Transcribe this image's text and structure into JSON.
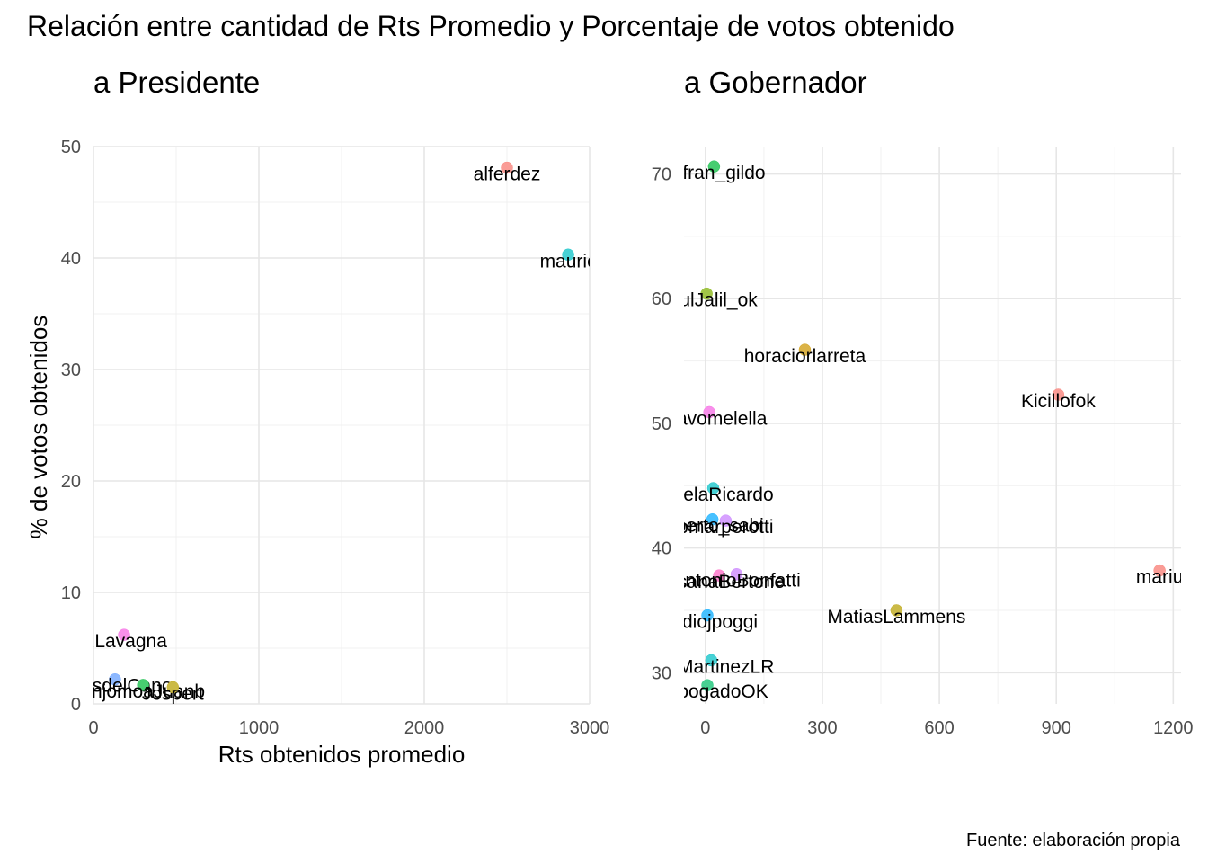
{
  "title": "Relación entre cantidad de Rts Promedio y Porcentaje de votos obtenido",
  "caption": "Fuente: elaboración propia",
  "chart_data": [
    {
      "type": "scatter",
      "title": "a Presidente",
      "xlabel": "Rts obtenidos promedio",
      "ylabel": "% de votos obtenidos",
      "xlim": [
        0,
        3000
      ],
      "ylim": [
        0,
        50
      ],
      "x_ticks": [
        0,
        1000,
        2000,
        3000
      ],
      "y_ticks": [
        0,
        10,
        20,
        30,
        40,
        50
      ],
      "grid": true,
      "points": [
        {
          "label": "alferdez",
          "x": 2500,
          "y": 48.1,
          "color": "#F8766D"
        },
        {
          "label": "mauric",
          "x": 2870,
          "y": 40.3,
          "color": "#00BFC4"
        },
        {
          "label": "RLavagna",
          "x": 185,
          "y": 6.2,
          "color": "#F564E3"
        },
        {
          "label": "colasdelCano",
          "x": 130,
          "y": 2.2,
          "color": "#619CFF"
        },
        {
          "label": "anjomoaJuanb",
          "x": 300,
          "y": 1.7,
          "color": "#00BA38"
        },
        {
          "label": "Jospert",
          "x": 480,
          "y": 1.5,
          "color": "#B79F00"
        }
      ]
    },
    {
      "type": "scatter",
      "title": "a Gobernador",
      "xlabel": "",
      "ylabel": "",
      "xlim": [
        -55,
        1220
      ],
      "ylim": [
        27.5,
        72.2
      ],
      "x_ticks": [
        0,
        300,
        600,
        900,
        1200
      ],
      "y_ticks": [
        30,
        40,
        50,
        60,
        70
      ],
      "grid": true,
      "points": [
        {
          "label": "nsfran_gildo",
          "x": 22,
          "y": 70.6,
          "color": "#00BA38"
        },
        {
          "label": "RaulJalil_ok",
          "x": 3,
          "y": 60.4,
          "color": "#7CAE00"
        },
        {
          "label": "horaciorlarreta",
          "x": 255,
          "y": 55.9,
          "color": "#CD9600"
        },
        {
          "label": "Kicillofok",
          "x": 905,
          "y": 52.3,
          "color": "#F8766D"
        },
        {
          "label": "ustavomelella",
          "x": 10,
          "y": 50.9,
          "color": "#F564E3"
        },
        {
          "label": "uintelaRicardo",
          "x": 20,
          "y": 44.8,
          "color": "#00BFC4"
        },
        {
          "label": "alberto_sabi",
          "x": 18,
          "y": 42.3,
          "color": "#00A9FF"
        },
        {
          "label": "omarperotti",
          "x": 52,
          "y": 42.2,
          "color": "#C77CFF"
        },
        {
          "label": "RosanaBertone",
          "x": 35,
          "y": 37.8,
          "color": "#FF61C3"
        },
        {
          "label": "AntonioBonfatti",
          "x": 80,
          "y": 37.9,
          "color": "#C77CFF"
        },
        {
          "label": "mariu",
          "x": 1165,
          "y": 38.2,
          "color": "#F8766D"
        },
        {
          "label": "MatiasLammens",
          "x": 490,
          "y": 35.0,
          "color": "#B79F00"
        },
        {
          "label": "laudiojpoggi",
          "x": 5,
          "y": 34.6,
          "color": "#00A9FF"
        },
        {
          "label": "ulioMartinezLR",
          "x": 15,
          "y": 31.0,
          "color": "#00BFC4"
        },
        {
          "label": "rianbogadoOK",
          "x": 5,
          "y": 29.0,
          "color": "#00BE67"
        }
      ]
    }
  ]
}
